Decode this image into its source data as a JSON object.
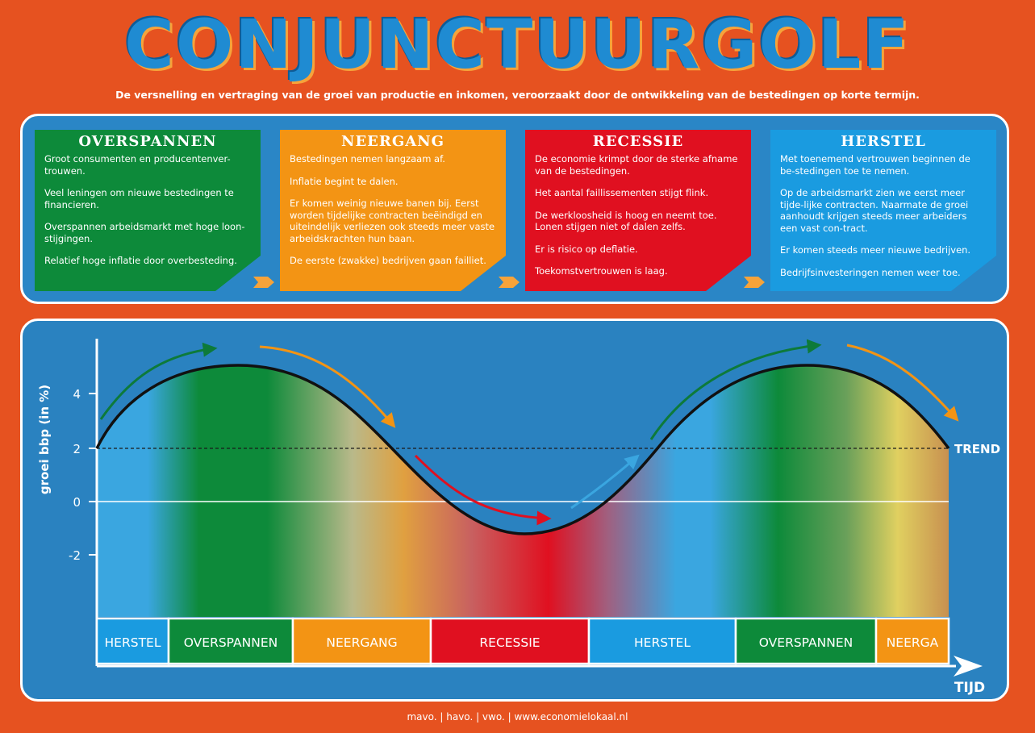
{
  "title": "CONJUNCTUURGOLF",
  "subtitle": "De versnelling en vertraging van de groei van productie en inkomen, veroorzaakt door de ontwikkeling van de bestedingen op korte termijn.",
  "cards": [
    {
      "title": "OVERSPANNEN",
      "color": "#0d8a3a",
      "lines": [
        "Groot consumenten  en producentenver-trouwen.",
        "Veel leningen om nieuwe bestedingen te financieren.",
        "Overspannen arbeidsmarkt met hoge loon-stijgingen.",
        "Relatief hoge inflatie door overbesteding."
      ]
    },
    {
      "title": "NEERGANG",
      "color": "#f39414",
      "lines": [
        "Bestedingen nemen langzaam af.",
        "Inflatie begint te dalen.",
        "Er komen weinig nieuwe banen bij. Eerst worden tijdelijke contracten beëindigd en uiteindelijk verliezen ook steeds meer vaste arbeidskrachten hun baan.",
        "De eerste (zwakke) bedrijven gaan failliet."
      ]
    },
    {
      "title": "RECESSIE",
      "color": "#e01020",
      "lines": [
        "De economie krimpt door de sterke afname van de bestedingen.",
        "Het aantal faillissementen stijgt flink.",
        "De werkloosheid is hoog en neemt toe. Lonen stijgen niet of dalen zelfs.",
        "Er is risico op deflatie.",
        "Toekomstvertrouwen is laag."
      ]
    },
    {
      "title": "HERSTEL",
      "color": "#1a9be0",
      "lines": [
        "Met toenemend vertrouwen beginnen de be-stedingen toe te nemen.",
        "Op de arbeidsmarkt zien we eerst meer tijde-lijke contracten. Naarmate de groei aanhoudt krijgen steeds meer arbeiders een vast con-tract.",
        "Er komen steeds meer nieuwe bedrijven.",
        "Bedrijfsinvesteringen nemen weer toe."
      ]
    }
  ],
  "chart": {
    "ylabel": "groei bbp (in %)",
    "yticks": [
      "4",
      "2",
      "0",
      "-2"
    ],
    "trend_label": "TREND",
    "xlabel": "TIJD",
    "phases": [
      {
        "label": "HERSTEL",
        "color": "#1a9be0"
      },
      {
        "label": "OVERSPANNEN",
        "color": "#0d8a3a"
      },
      {
        "label": "NEERGANG",
        "color": "#f39414"
      },
      {
        "label": "RECESSIE",
        "color": "#e01020"
      },
      {
        "label": "HERSTEL",
        "color": "#1a9be0"
      },
      {
        "label": "OVERSPANNEN",
        "color": "#0d8a3a"
      },
      {
        "label": "NEERGA",
        "color": "#f39414"
      }
    ]
  },
  "footer": "mavo. | havo. | vwo. | www.economielokaal.nl",
  "colors": {
    "background": "#e65220",
    "panel": "#2a86c6",
    "title": "#1f8bd2"
  }
}
